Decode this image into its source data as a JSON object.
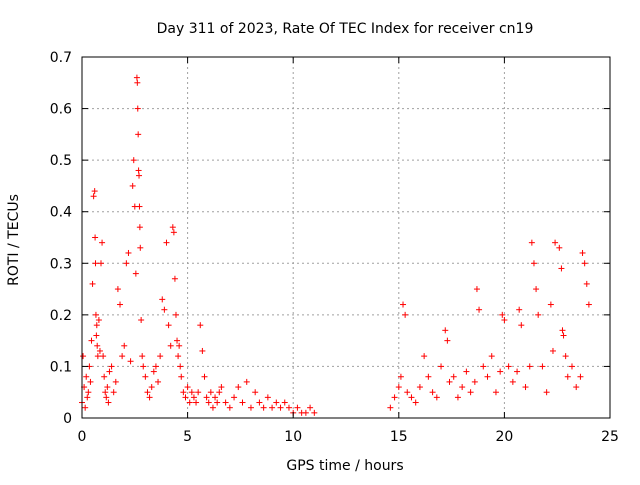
{
  "chart_data": {
    "type": "scatter",
    "title": "Day 311 of 2023, Rate Of TEC Index for receiver cn19",
    "xlabel": "GPS time / hours",
    "ylabel": "ROTI / TECUs",
    "xlim": [
      0,
      25
    ],
    "ylim": [
      0,
      0.7
    ],
    "xticks": [
      0,
      5,
      10,
      15,
      20,
      25
    ],
    "yticks": [
      0,
      0.1,
      0.2,
      0.3,
      0.4,
      0.5,
      0.6,
      0.7
    ],
    "xtick_labels": [
      "0",
      "5",
      "10",
      "15",
      "20",
      "25"
    ],
    "ytick_labels": [
      "0",
      "0.1",
      "0.2",
      "0.3",
      "0.4",
      "0.5",
      "0.6",
      "0.7"
    ],
    "grid": true,
    "marker": "+",
    "color": "#ff0000",
    "series": [
      {
        "x": [
          0.0,
          0.05,
          0.1,
          0.15,
          0.2,
          0.25,
          0.3,
          0.35,
          0.4,
          0.45,
          0.5,
          0.55,
          0.6,
          0.62,
          0.64,
          0.66,
          0.68,
          0.7,
          0.72,
          0.75,
          0.8,
          0.85,
          0.9,
          0.95,
          1.0,
          1.05,
          1.1,
          1.15,
          1.2,
          1.25,
          1.3,
          1.4,
          1.5,
          1.6,
          1.7,
          1.8,
          1.9,
          2.0,
          2.1,
          2.2,
          2.3,
          2.4,
          2.45,
          2.5,
          2.55,
          2.6,
          2.62,
          2.64,
          2.66,
          2.68,
          2.7,
          2.72,
          2.74,
          2.76,
          2.8,
          2.85,
          2.9,
          3.0,
          3.1,
          3.2,
          3.3,
          3.4,
          3.5,
          3.6,
          3.7,
          3.8,
          3.9,
          4.0,
          4.1,
          4.2,
          4.3,
          4.35,
          4.4,
          4.45,
          4.5,
          4.55,
          4.6,
          4.65,
          4.7,
          4.8,
          4.9,
          5.0,
          5.1,
          5.2,
          5.3,
          5.4,
          5.5,
          5.6,
          5.7,
          5.8,
          5.9,
          6.0,
          6.1,
          6.2,
          6.3,
          6.4,
          6.5,
          6.6,
          6.8,
          7.0,
          7.2,
          7.4,
          7.6,
          7.8,
          8.0,
          8.2,
          8.4,
          8.6,
          8.8,
          9.0,
          9.2,
          9.4,
          9.6,
          9.8,
          10.0,
          10.2,
          10.4,
          10.6,
          10.8,
          11.0,
          14.6,
          14.8,
          15.0,
          15.1,
          15.2,
          15.3,
          15.4,
          15.6,
          15.8,
          16.0,
          16.2,
          16.4,
          16.6,
          16.8,
          17.0,
          17.2,
          17.3,
          17.4,
          17.6,
          17.8,
          18.0,
          18.2,
          18.4,
          18.6,
          18.7,
          18.8,
          19.0,
          19.2,
          19.4,
          19.6,
          19.8,
          19.9,
          20.0,
          20.2,
          20.4,
          20.6,
          20.7,
          20.8,
          21.0,
          21.2,
          21.3,
          21.4,
          21.5,
          21.6,
          21.8,
          22.0,
          22.2,
          22.3,
          22.4,
          22.6,
          22.7,
          22.75,
          22.8,
          22.9,
          23.0,
          23.2,
          23.4,
          23.6,
          23.7,
          23.8,
          23.9,
          24.0
        ],
        "y": [
          0.03,
          0.12,
          0.06,
          0.02,
          0.08,
          0.04,
          0.05,
          0.1,
          0.07,
          0.15,
          0.26,
          0.43,
          0.44,
          0.35,
          0.3,
          0.2,
          0.16,
          0.18,
          0.14,
          0.12,
          0.19,
          0.13,
          0.3,
          0.34,
          0.12,
          0.08,
          0.05,
          0.04,
          0.06,
          0.03,
          0.09,
          0.1,
          0.05,
          0.07,
          0.25,
          0.22,
          0.12,
          0.14,
          0.3,
          0.32,
          0.11,
          0.45,
          0.5,
          0.41,
          0.28,
          0.66,
          0.65,
          0.6,
          0.55,
          0.48,
          0.47,
          0.41,
          0.37,
          0.33,
          0.19,
          0.12,
          0.1,
          0.08,
          0.05,
          0.04,
          0.06,
          0.09,
          0.1,
          0.07,
          0.12,
          0.23,
          0.21,
          0.34,
          0.18,
          0.14,
          0.37,
          0.36,
          0.27,
          0.2,
          0.15,
          0.12,
          0.14,
          0.1,
          0.08,
          0.05,
          0.04,
          0.06,
          0.03,
          0.05,
          0.04,
          0.03,
          0.05,
          0.18,
          0.13,
          0.08,
          0.04,
          0.03,
          0.05,
          0.02,
          0.04,
          0.03,
          0.05,
          0.06,
          0.03,
          0.02,
          0.04,
          0.06,
          0.03,
          0.07,
          0.02,
          0.05,
          0.03,
          0.02,
          0.04,
          0.02,
          0.03,
          0.02,
          0.03,
          0.02,
          0.01,
          0.02,
          0.01,
          0.01,
          0.02,
          0.01,
          0.02,
          0.04,
          0.06,
          0.08,
          0.22,
          0.2,
          0.05,
          0.04,
          0.03,
          0.06,
          0.12,
          0.08,
          0.05,
          0.04,
          0.1,
          0.17,
          0.15,
          0.07,
          0.08,
          0.04,
          0.06,
          0.09,
          0.05,
          0.07,
          0.25,
          0.21,
          0.1,
          0.08,
          0.12,
          0.05,
          0.09,
          0.2,
          0.19,
          0.1,
          0.07,
          0.09,
          0.21,
          0.18,
          0.06,
          0.1,
          0.34,
          0.3,
          0.25,
          0.2,
          0.1,
          0.05,
          0.22,
          0.13,
          0.34,
          0.33,
          0.29,
          0.17,
          0.16,
          0.12,
          0.08,
          0.1,
          0.06,
          0.08,
          0.32,
          0.3,
          0.26,
          0.22
        ]
      }
    ]
  }
}
